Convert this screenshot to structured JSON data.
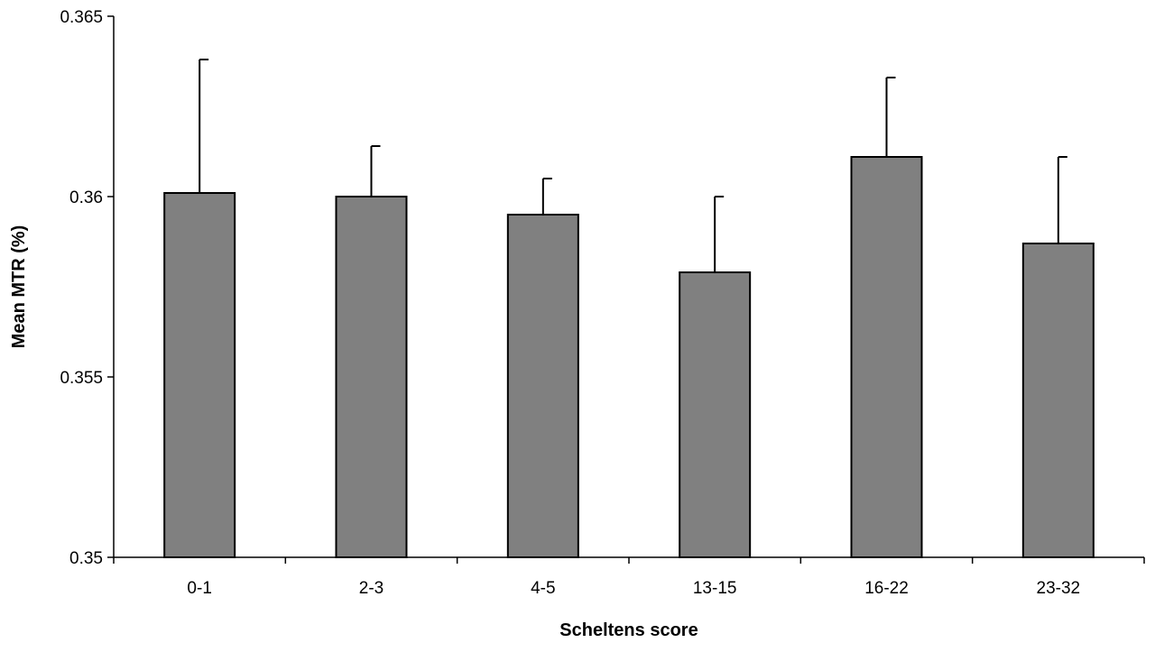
{
  "chart_data": {
    "type": "bar",
    "title": "",
    "xlabel": "Scheltens score",
    "ylabel": "Mean MTR (%)",
    "categories": [
      "0-1",
      "2-3",
      "4-5",
      "13-15",
      "16-22",
      "23-32"
    ],
    "values": [
      0.3601,
      0.36,
      0.3595,
      0.3579,
      0.3611,
      0.3587
    ],
    "error_upper": [
      0.3638,
      0.3614,
      0.3605,
      0.36,
      0.3633,
      0.3611
    ],
    "ylim": [
      0.35,
      0.365
    ],
    "yticks": [
      0.35,
      0.355,
      0.36,
      0.365
    ],
    "ytick_labels": [
      "0.35",
      "0.355",
      "0.36",
      "0.365"
    ],
    "grid": false,
    "legend": "none",
    "bar_color": "#808080",
    "bar_edge_color": "#000000"
  }
}
